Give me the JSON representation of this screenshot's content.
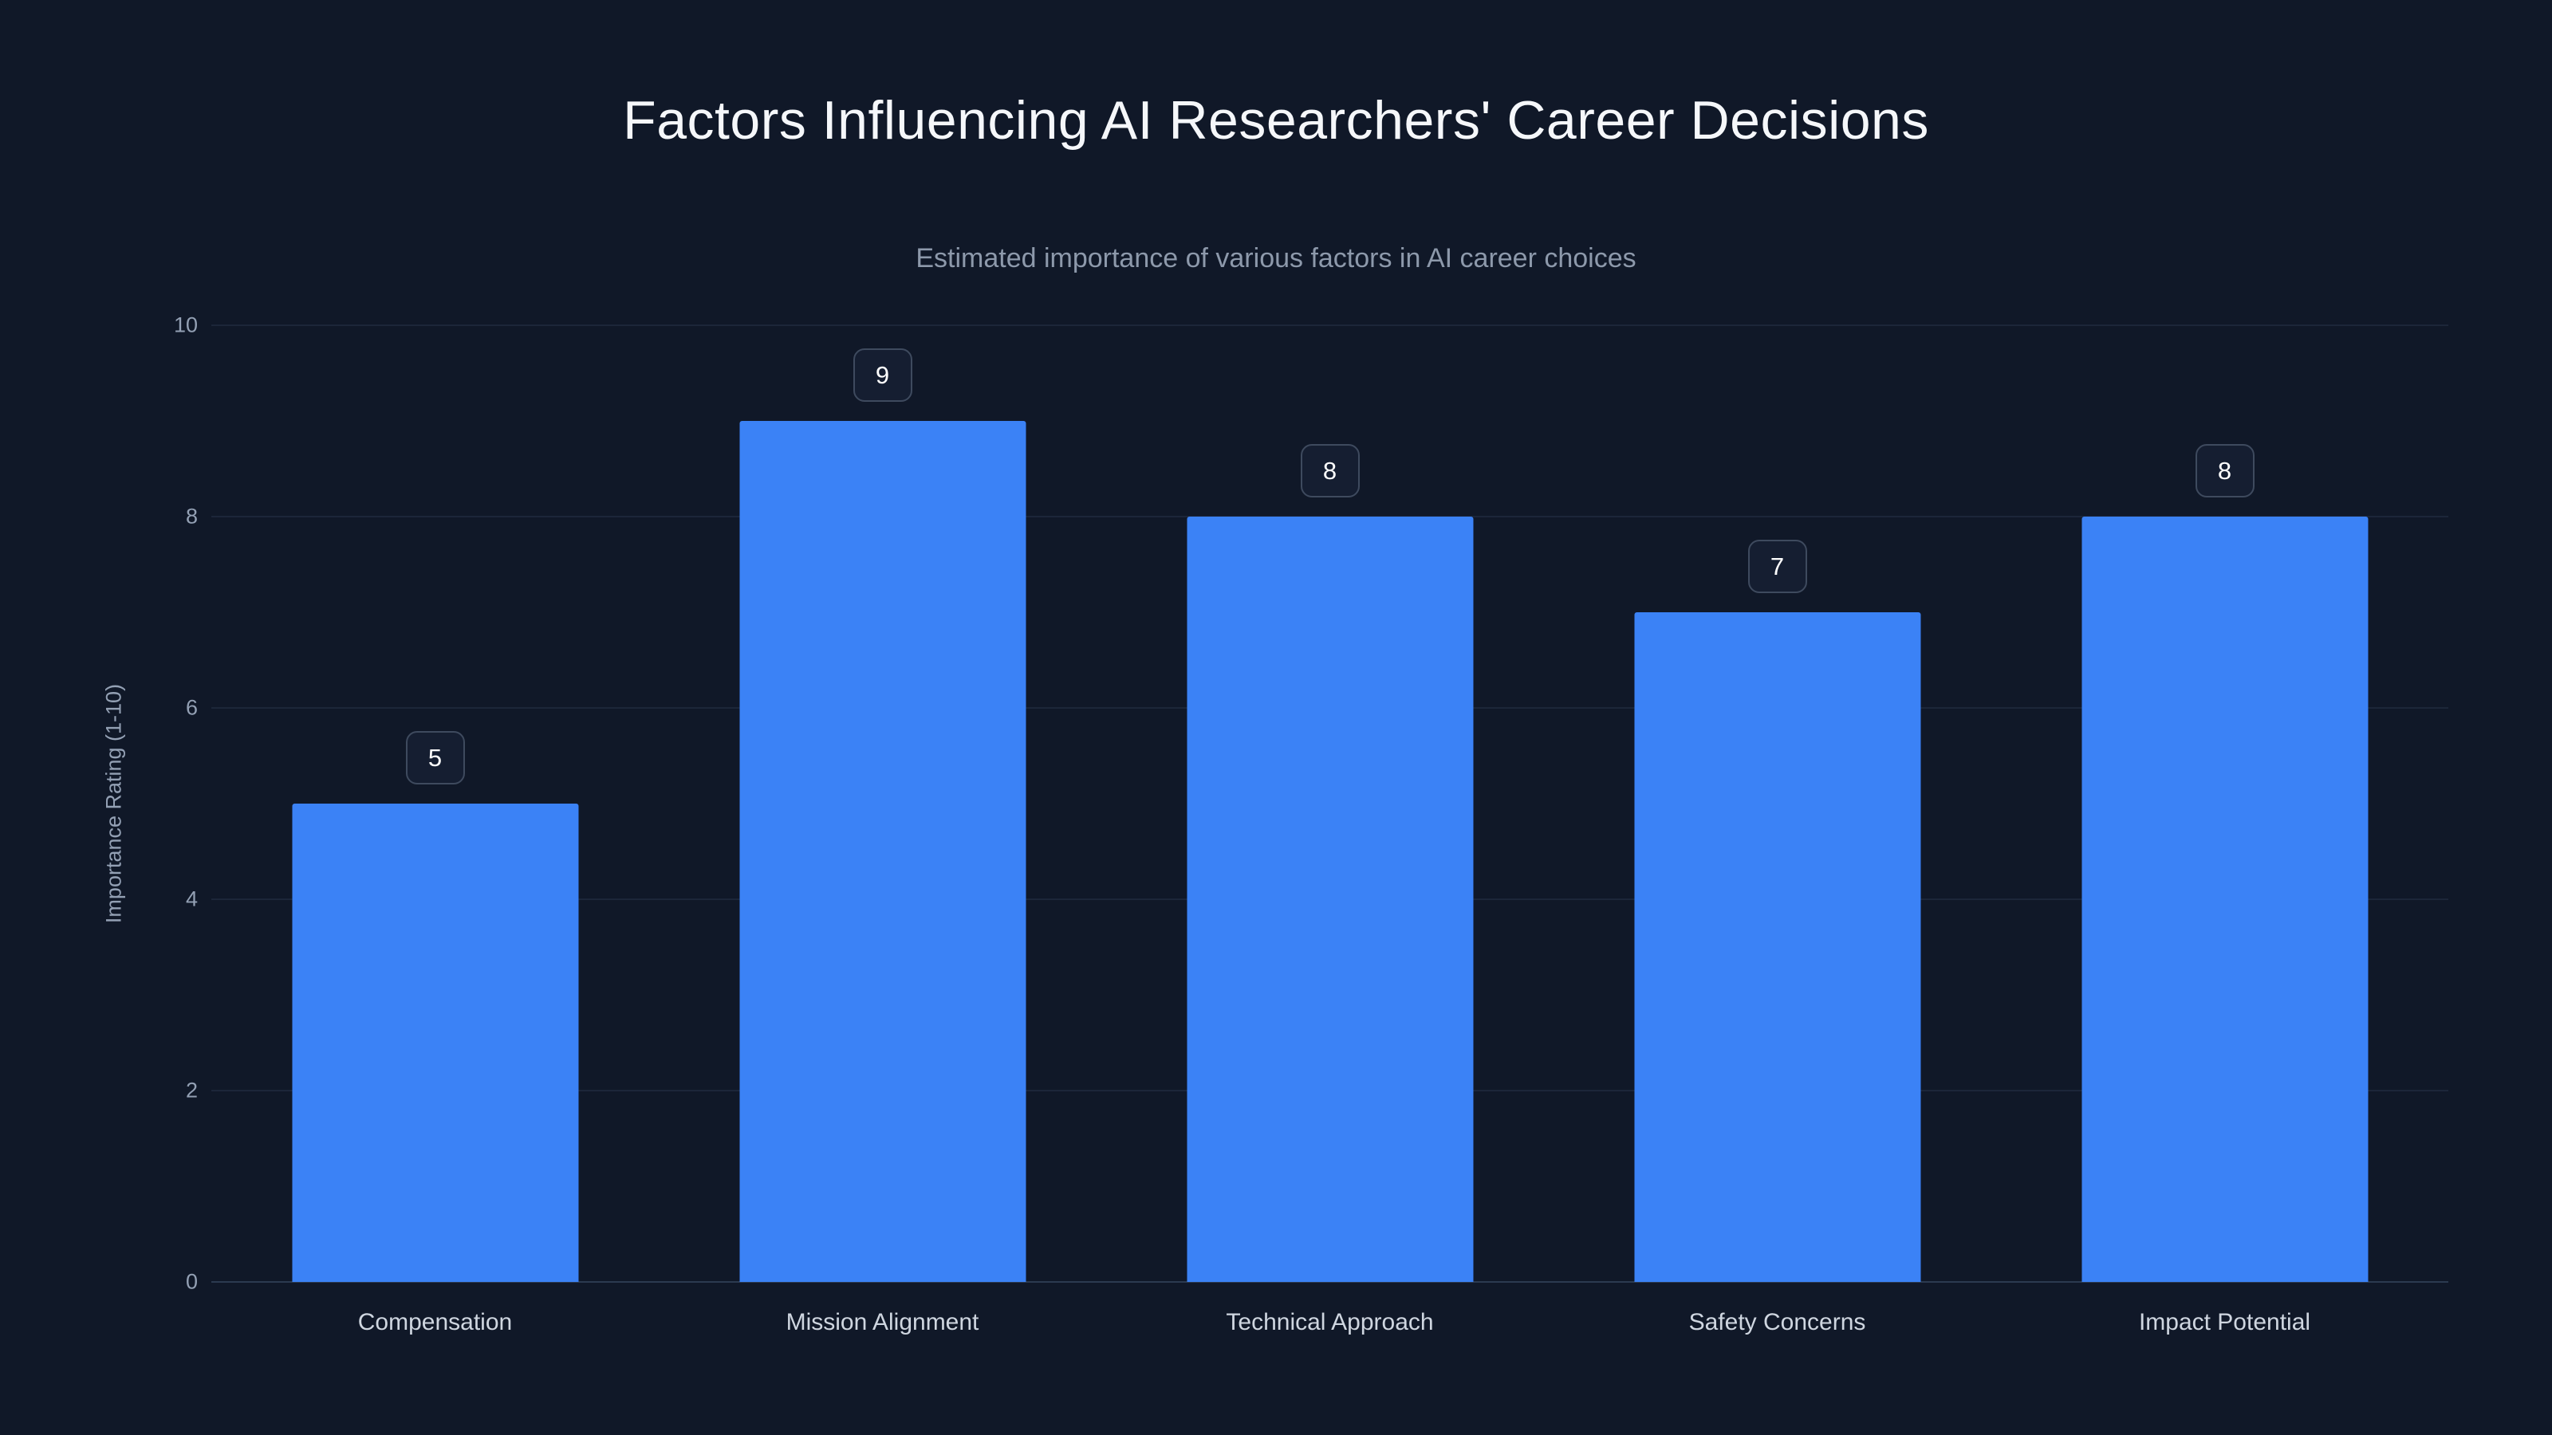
{
  "page": {
    "background_color": "#101828"
  },
  "chart_data": {
    "type": "bar",
    "title": "Factors Influencing AI Researchers' Career Decisions",
    "subtitle": "Estimated importance of various factors in AI career choices",
    "ylabel": "Importance Rating (1-10)",
    "xlabel": "",
    "categories": [
      "Compensation",
      "Mission Alignment",
      "Technical Approach",
      "Safety Concerns",
      "Impact Potential"
    ],
    "values": [
      5,
      9,
      8,
      7,
      8
    ],
    "value_labels": [
      "5",
      "9",
      "8",
      "7",
      "8"
    ],
    "ylim": [
      0,
      10
    ],
    "yticks": [
      0,
      2,
      4,
      6,
      8,
      10
    ],
    "grid": true,
    "legend": "none",
    "bar_color": "#3b82f6",
    "grid_color": "#1c2639",
    "zero_line_color": "#2c3a50",
    "title_color": "#f5f7fa",
    "subtitle_color": "#8d99ab",
    "tick_color": "#93a0b4",
    "badge_bg_color": "#151e31",
    "badge_border_color": "#3e4a5e"
  }
}
